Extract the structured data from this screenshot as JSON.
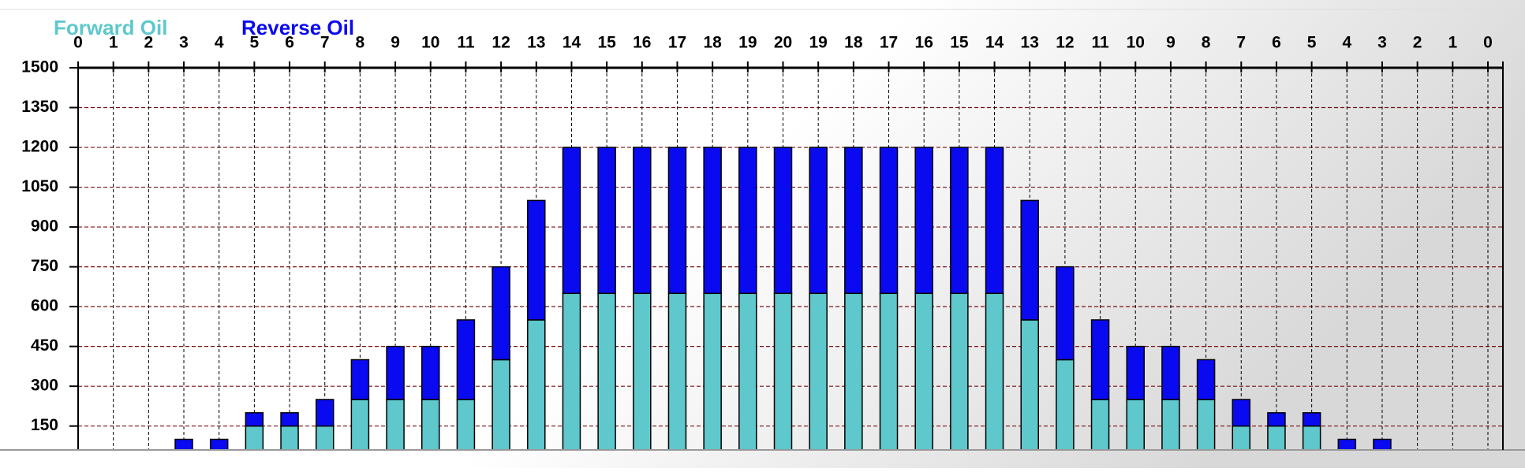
{
  "chart_data": {
    "type": "bar",
    "stacked": true,
    "categories": [
      "0",
      "1",
      "2",
      "3",
      "4",
      "5",
      "6",
      "7",
      "8",
      "9",
      "10",
      "11",
      "12",
      "13",
      "14",
      "15",
      "16",
      "17",
      "18",
      "19",
      "20",
      "19",
      "18",
      "17",
      "16",
      "15",
      "14",
      "13",
      "12",
      "11",
      "10",
      "9",
      "8",
      "7",
      "6",
      "5",
      "4",
      "3",
      "2",
      "1",
      "0"
    ],
    "series": [
      {
        "name": "Forward Oil",
        "color": "#5ec8cc",
        "values": [
          0,
          0,
          0,
          0,
          0,
          150,
          150,
          150,
          250,
          250,
          250,
          250,
          400,
          550,
          650,
          650,
          650,
          650,
          650,
          650,
          650,
          650,
          650,
          650,
          650,
          650,
          650,
          550,
          400,
          250,
          250,
          250,
          250,
          150,
          150,
          150,
          0,
          0,
          0,
          0,
          0
        ]
      },
      {
        "name": "Reverse Oil",
        "color": "#0a0af0",
        "values": [
          0,
          0,
          0,
          100,
          100,
          50,
          50,
          100,
          150,
          200,
          200,
          300,
          350,
          450,
          550,
          550,
          550,
          550,
          550,
          550,
          550,
          550,
          550,
          550,
          550,
          550,
          550,
          450,
          350,
          300,
          200,
          200,
          150,
          100,
          50,
          50,
          100,
          100,
          0,
          0,
          0
        ]
      }
    ],
    "ylim": [
      60,
      1500
    ],
    "yticks": [
      150,
      300,
      450,
      600,
      750,
      900,
      1050,
      1200,
      1350,
      1500
    ],
    "grid": true
  }
}
